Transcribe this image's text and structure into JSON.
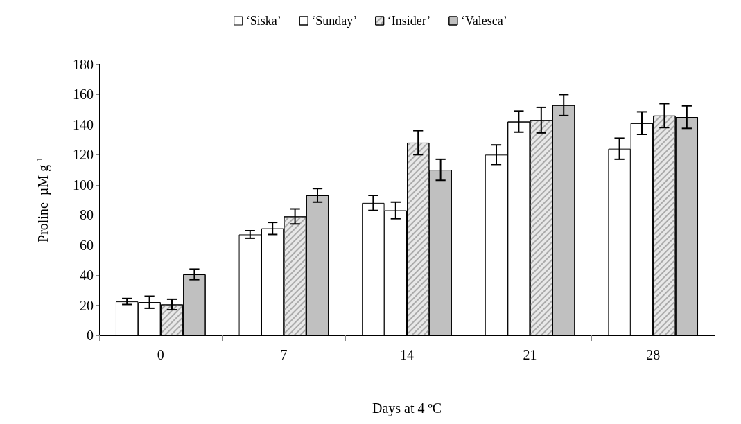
{
  "chart_data": {
    "type": "bar",
    "xlabel": "Days at 4 ºC",
    "ylabel": "Proline  µM g$^{-1}$",
    "categories": [
      "0",
      "7",
      "14",
      "21",
      "28"
    ],
    "series": [
      {
        "name": "‘Siska’",
        "color": "#ffffff",
        "values": [
          22.5,
          67,
          88,
          120,
          124
        ],
        "errors": [
          2,
          2.5,
          5,
          6.5,
          7
        ]
      },
      {
        "name": "‘Sunday’",
        "color": "#ffffff",
        "values": [
          22,
          71,
          83,
          142,
          141
        ],
        "errors": [
          4,
          4,
          5.5,
          7,
          7.5
        ]
      },
      {
        "name": "‘Insider’",
        "color": "#e8e8e8",
        "values": [
          20.5,
          79,
          128,
          143,
          146
        ],
        "errors": [
          3.5,
          5,
          8,
          8.5,
          8
        ]
      },
      {
        "name": "‘Valesca’",
        "color": "#c0c0c0",
        "values": [
          40.5,
          93,
          110,
          153,
          145
        ],
        "errors": [
          3.5,
          4.5,
          7,
          7,
          7.5
        ]
      }
    ],
    "ylim": [
      0,
      180
    ],
    "yticks": [
      0,
      20,
      40,
      60,
      80,
      100,
      120,
      140,
      160,
      180
    ],
    "grid": false,
    "legend": "top"
  }
}
